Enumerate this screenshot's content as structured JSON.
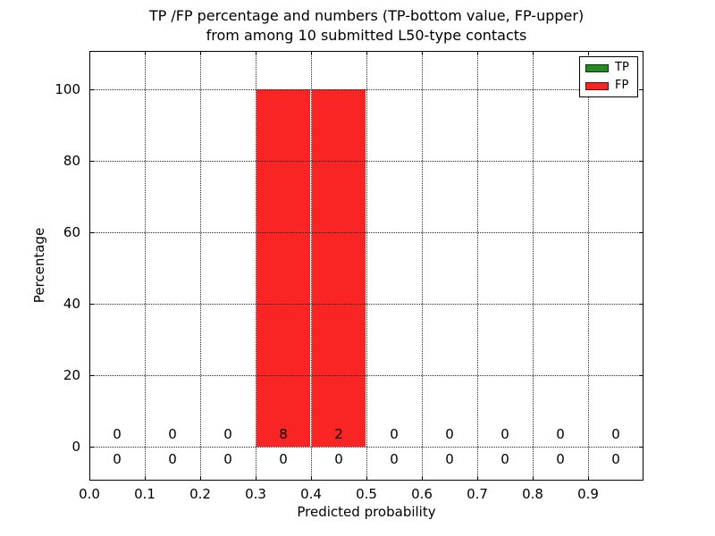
{
  "chart_data": {
    "type": "bar",
    "title_line1": "TP /FP percentage and numbers (TP-bottom value, FP-upper)",
    "title_line2": "from among 10 submitted L50-type contacts",
    "xlabel": "Predicted probability",
    "ylabel": "Percentage",
    "xlim": [
      0.0,
      1.0
    ],
    "ylim": [
      -10,
      110
    ],
    "x_ticks": [
      0.0,
      0.1,
      0.2,
      0.3,
      0.4,
      0.5,
      0.6,
      0.7,
      0.8,
      0.9
    ],
    "y_ticks": [
      0,
      20,
      40,
      60,
      80,
      100
    ],
    "grid": "dotted",
    "total_contacts": 10,
    "legend": {
      "position": "upper right",
      "entries": [
        {
          "label": "TP",
          "color": "#228b22"
        },
        {
          "label": "FP",
          "color": "#f92525"
        }
      ]
    },
    "bins": [
      {
        "x_start": 0.0,
        "x_end": 0.1,
        "tp_count": 0,
        "fp_count": 0,
        "tp_pct": 0,
        "fp_pct": 0
      },
      {
        "x_start": 0.1,
        "x_end": 0.2,
        "tp_count": 0,
        "fp_count": 0,
        "tp_pct": 0,
        "fp_pct": 0
      },
      {
        "x_start": 0.2,
        "x_end": 0.3,
        "tp_count": 0,
        "fp_count": 0,
        "tp_pct": 0,
        "fp_pct": 0
      },
      {
        "x_start": 0.3,
        "x_end": 0.4,
        "tp_count": 0,
        "fp_count": 8,
        "tp_pct": 0,
        "fp_pct": 100
      },
      {
        "x_start": 0.4,
        "x_end": 0.5,
        "tp_count": 0,
        "fp_count": 2,
        "tp_pct": 0,
        "fp_pct": 100
      },
      {
        "x_start": 0.5,
        "x_end": 0.6,
        "tp_count": 0,
        "fp_count": 0,
        "tp_pct": 0,
        "fp_pct": 0
      },
      {
        "x_start": 0.6,
        "x_end": 0.7,
        "tp_count": 0,
        "fp_count": 0,
        "tp_pct": 0,
        "fp_pct": 0
      },
      {
        "x_start": 0.7,
        "x_end": 0.8,
        "tp_count": 0,
        "fp_count": 0,
        "tp_pct": 0,
        "fp_pct": 0
      },
      {
        "x_start": 0.8,
        "x_end": 0.9,
        "tp_count": 0,
        "fp_count": 0,
        "tp_pct": 0,
        "fp_pct": 0
      },
      {
        "x_start": 0.9,
        "x_end": 1.0,
        "tp_count": 0,
        "fp_count": 0,
        "tp_pct": 0,
        "fp_pct": 0
      }
    ]
  }
}
